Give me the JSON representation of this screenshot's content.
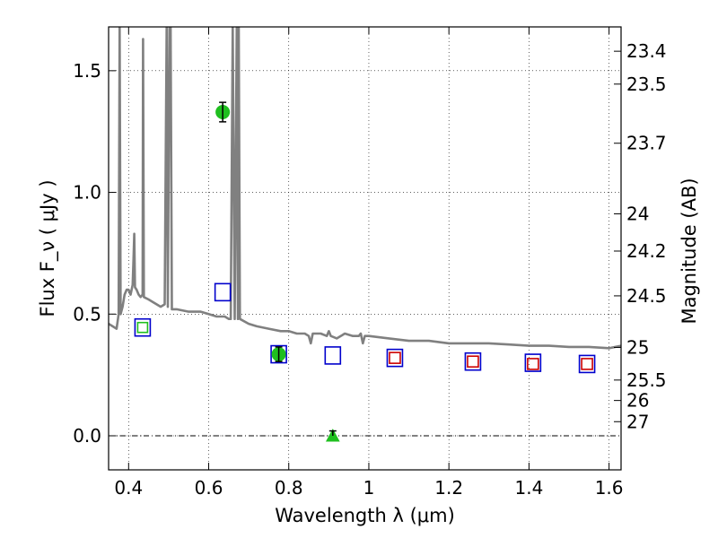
{
  "chart_data": {
    "type": "scatter",
    "xlabel": "Wavelength  λ (μm)",
    "ylabel": "Flux  F_ν  ( μJy )",
    "ylabel_right": "Magnitude (AB)",
    "xlim": [
      0.35,
      1.63
    ],
    "ylim": [
      -0.14,
      1.68
    ],
    "grid": true,
    "x_ticks": [
      {
        "value": 0.4,
        "label": "0.4"
      },
      {
        "value": 0.6,
        "label": "0.6"
      },
      {
        "value": 0.8,
        "label": "0.8"
      },
      {
        "value": 1.0,
        "label": "1"
      },
      {
        "value": 1.2,
        "label": "1.2"
      },
      {
        "value": 1.4,
        "label": "1.4"
      },
      {
        "value": 1.6,
        "label": "1.6"
      }
    ],
    "y_ticks": [
      {
        "value": 0.0,
        "label": "0.0"
      },
      {
        "value": 0.5,
        "label": "0.5"
      },
      {
        "value": 1.0,
        "label": "1.0"
      },
      {
        "value": 1.5,
        "label": "1.5"
      }
    ],
    "right_ticks": [
      {
        "label": "23.4",
        "flux": 1.58
      },
      {
        "label": "23.5",
        "flux": 1.445
      },
      {
        "label": "23.7",
        "flux": 1.202
      },
      {
        "label": "24",
        "flux": 0.912
      },
      {
        "label": "24.2",
        "flux": 0.759
      },
      {
        "label": "24.5",
        "flux": 0.575
      },
      {
        "label": "25",
        "flux": 0.363
      },
      {
        "label": "25.5",
        "flux": 0.229
      },
      {
        "label": "26",
        "flux": 0.145
      },
      {
        "label": "27",
        "flux": 0.058
      }
    ],
    "colors": {
      "sed": "#808080",
      "observed": "#1fbf1f",
      "model_blue": "#0000cc",
      "model_red": "#cc0000",
      "model_green": "#1fbf1f"
    },
    "series": [
      {
        "kind": "model_sed_line",
        "points": [
          [
            0.35,
            0.46
          ],
          [
            0.37,
            0.44
          ],
          [
            0.375,
            0.5
          ],
          [
            0.3775,
            1.68
          ],
          [
            0.38,
            0.5
          ],
          [
            0.385,
            0.53
          ],
          [
            0.39,
            0.58
          ],
          [
            0.395,
            0.6
          ],
          [
            0.4,
            0.6
          ],
          [
            0.405,
            0.58
          ],
          [
            0.41,
            0.62
          ],
          [
            0.412,
            0.72
          ],
          [
            0.414,
            0.83
          ],
          [
            0.416,
            0.61
          ],
          [
            0.42,
            0.6
          ],
          [
            0.425,
            0.58
          ],
          [
            0.43,
            0.57
          ],
          [
            0.435,
            0.58
          ],
          [
            0.436,
            1.63
          ],
          [
            0.438,
            0.57
          ],
          [
            0.45,
            0.56
          ],
          [
            0.46,
            0.55
          ],
          [
            0.47,
            0.54
          ],
          [
            0.48,
            0.53
          ],
          [
            0.49,
            0.54
          ],
          [
            0.495,
            1.68
          ],
          [
            0.498,
            0.53
          ],
          [
            0.502,
            1.68
          ],
          [
            0.505,
            1.68
          ],
          [
            0.508,
            0.52
          ],
          [
            0.52,
            0.52
          ],
          [
            0.55,
            0.51
          ],
          [
            0.58,
            0.51
          ],
          [
            0.6,
            0.5
          ],
          [
            0.62,
            0.49
          ],
          [
            0.64,
            0.49
          ],
          [
            0.65,
            0.48
          ],
          [
            0.655,
            0.48
          ],
          [
            0.66,
            1.68
          ],
          [
            0.665,
            0.48
          ],
          [
            0.67,
            1.68
          ],
          [
            0.673,
            0.48
          ],
          [
            0.675,
            1.68
          ],
          [
            0.678,
            0.48
          ],
          [
            0.7,
            0.46
          ],
          [
            0.72,
            0.45
          ],
          [
            0.75,
            0.44
          ],
          [
            0.78,
            0.43
          ],
          [
            0.8,
            0.43
          ],
          [
            0.82,
            0.42
          ],
          [
            0.84,
            0.42
          ],
          [
            0.85,
            0.41
          ],
          [
            0.855,
            0.38
          ],
          [
            0.86,
            0.42
          ],
          [
            0.88,
            0.42
          ],
          [
            0.895,
            0.41
          ],
          [
            0.9,
            0.43
          ],
          [
            0.905,
            0.41
          ],
          [
            0.92,
            0.4
          ],
          [
            0.94,
            0.42
          ],
          [
            0.96,
            0.41
          ],
          [
            0.975,
            0.41
          ],
          [
            0.98,
            0.42
          ],
          [
            0.985,
            0.38
          ],
          [
            0.99,
            0.41
          ],
          [
            1.0,
            0.41
          ],
          [
            1.05,
            0.4
          ],
          [
            1.1,
            0.39
          ],
          [
            1.15,
            0.39
          ],
          [
            1.2,
            0.38
          ],
          [
            1.25,
            0.38
          ],
          [
            1.3,
            0.38
          ],
          [
            1.35,
            0.375
          ],
          [
            1.4,
            0.37
          ],
          [
            1.45,
            0.37
          ],
          [
            1.5,
            0.365
          ],
          [
            1.55,
            0.365
          ],
          [
            1.6,
            0.36
          ],
          [
            1.63,
            0.37
          ]
        ]
      },
      {
        "kind": "observed_points",
        "points": [
          {
            "x": 0.635,
            "y": 1.33,
            "yerr": 0.04
          },
          {
            "x": 0.775,
            "y": 0.335,
            "yerr": 0.03
          }
        ]
      },
      {
        "kind": "upper_limit_triangle",
        "points": [
          {
            "x": 0.91,
            "y": 0.0,
            "yerr": 0.02
          }
        ]
      },
      {
        "kind": "model_squares_blue",
        "points": [
          [
            0.435,
            0.445
          ],
          [
            0.635,
            0.59
          ],
          [
            0.775,
            0.335
          ],
          [
            0.91,
            0.33
          ],
          [
            1.065,
            0.32
          ],
          [
            1.26,
            0.305
          ],
          [
            1.41,
            0.3
          ],
          [
            1.545,
            0.295
          ]
        ]
      },
      {
        "kind": "model_squares_red",
        "points": [
          [
            1.065,
            0.32
          ],
          [
            1.26,
            0.305
          ],
          [
            1.41,
            0.295
          ],
          [
            1.545,
            0.295
          ]
        ]
      },
      {
        "kind": "model_squares_green",
        "points": [
          [
            0.435,
            0.445
          ]
        ]
      }
    ]
  }
}
